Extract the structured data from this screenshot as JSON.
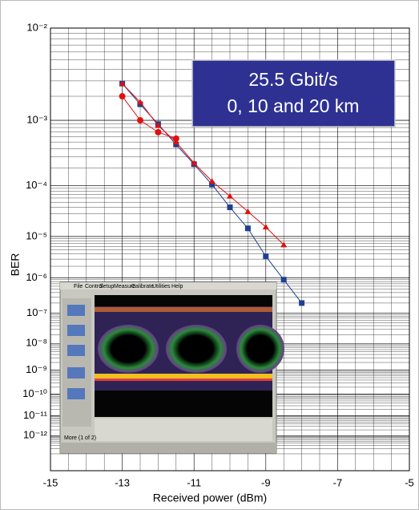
{
  "chart_data": {
    "type": "line",
    "annotation": [
      "25.5 Gbit/s",
      "0, 10 and 20 km"
    ],
    "xlabel": "Received power (dBm)",
    "ylabel": "BER",
    "xlim": [
      -15,
      -5
    ],
    "xticks": [
      -15,
      -13,
      -11,
      -9,
      -7,
      -5
    ],
    "yscale": "ber",
    "ylim": [
      0.01,
      1e-14
    ],
    "yticks": [
      {
        "value": 0.01,
        "label": "10⁻²"
      },
      {
        "value": 0.001,
        "label": "10⁻³"
      },
      {
        "value": 0.0001,
        "label": "10⁻⁴"
      },
      {
        "value": 1e-05,
        "label": "10⁻⁵"
      },
      {
        "value": 1e-06,
        "label": "10⁻⁶"
      },
      {
        "value": 1e-07,
        "label": "10⁻⁷"
      },
      {
        "value": 1e-08,
        "label": "10⁻⁸"
      },
      {
        "value": 1e-09,
        "label": "10⁻⁹"
      },
      {
        "value": 1e-10,
        "label": "10⁻¹⁰"
      },
      {
        "value": 1e-11,
        "label": "10⁻¹¹"
      },
      {
        "value": 1e-12,
        "label": "10⁻¹²"
      }
    ],
    "grid": true,
    "series": [
      {
        "color": "#1f3f8f",
        "marker": "square",
        "x": [
          -13,
          -12.5,
          -12,
          -11.5,
          -11,
          -10.5,
          -10,
          -9.5,
          -9,
          -8.5,
          -8
        ],
        "values": [
          0.0028,
          0.0016,
          0.00089,
          0.00046,
          0.00023,
          0.000105,
          4e-05,
          1.5e-05,
          3.5e-06,
          9e-07,
          2e-07
        ]
      },
      {
        "color": "#e01010",
        "marker": "triangle",
        "x": [
          -13,
          -12.5,
          -12,
          -11.5,
          -11,
          -10.5,
          -10,
          -9.5,
          -9,
          -8.5
        ],
        "values": [
          0.0028,
          0.0017,
          0.00085,
          0.0005,
          0.00024,
          0.00012,
          6.5e-05,
          3.3e-05,
          1.6e-05,
          6.5e-06
        ]
      },
      {
        "color": "#e01010",
        "marker": "circle",
        "x": [
          -13,
          -12.5,
          -12,
          -11.5
        ],
        "values": [
          0.002,
          0.001,
          0.00069,
          0.00056
        ]
      }
    ]
  },
  "inset": {
    "menu": [
      "File",
      "Control",
      "Setup",
      "Measure",
      "Calibrate",
      "Utilities",
      "Help"
    ],
    "footer": "More (1 of 2)"
  }
}
